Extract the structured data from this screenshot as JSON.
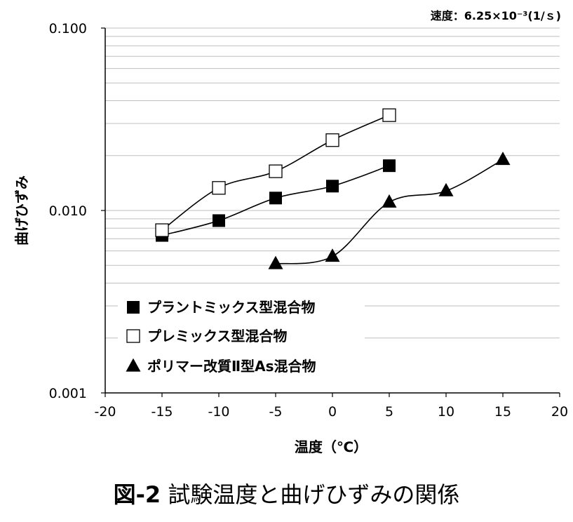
{
  "chart_data": {
    "type": "line",
    "subtitle": "速度：6.25×10⁻³(1/ｓ)",
    "xlabel": "温度（℃）",
    "ylabel": "曲げひずみ",
    "xlim": [
      -20,
      20
    ],
    "x_ticks": [
      -20,
      -15,
      -10,
      -5,
      0,
      5,
      10,
      15,
      20
    ],
    "ylim": [
      0.001,
      0.1
    ],
    "yscale": "log",
    "y_ticks": [
      "0.001",
      "0.010",
      "0.100"
    ],
    "grid": "horizontal minor gridlines",
    "legend_position": "lower-left",
    "series": [
      {
        "name": "プラントミックス型混合物",
        "marker": "filled-square",
        "x": [
          -15,
          -10,
          -5,
          0,
          5
        ],
        "y": [
          0.0073,
          0.0088,
          0.0117,
          0.0136,
          0.0176
        ]
      },
      {
        "name": "プレミックス型混合物",
        "marker": "open-square",
        "x": [
          -15,
          -10,
          -5,
          0,
          5
        ],
        "y": [
          0.0078,
          0.0133,
          0.0164,
          0.0243,
          0.0333
        ]
      },
      {
        "name": "ポリマー改質Ⅱ型As混合物",
        "marker": "filled-triangle",
        "x": [
          -5,
          0,
          5,
          10,
          15
        ],
        "y": [
          0.0051,
          0.0056,
          0.0111,
          0.0128,
          0.019
        ]
      }
    ]
  },
  "caption": {
    "number": "図-2",
    "text": "試験温度と曲げひずみの関係"
  }
}
